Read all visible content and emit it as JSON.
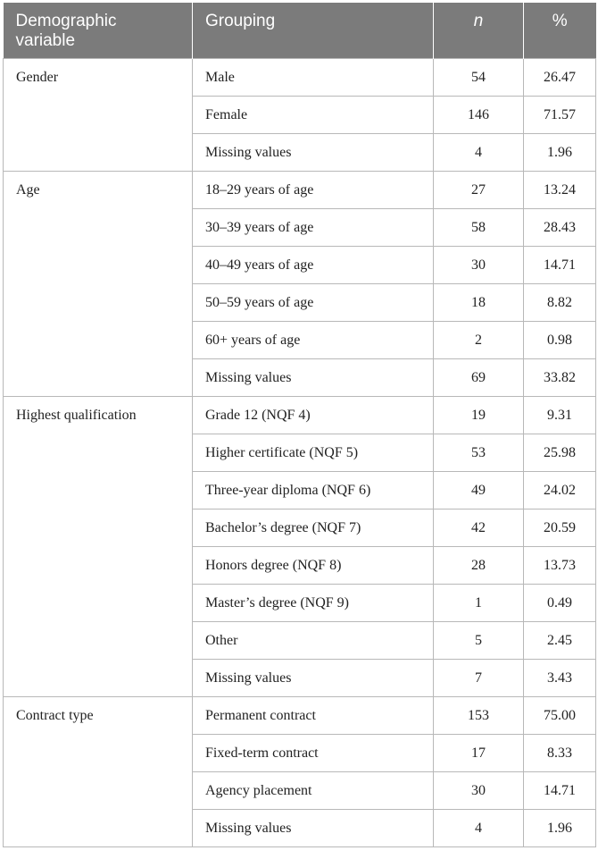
{
  "header": {
    "col1": "Demographic variable",
    "col2": "Grouping",
    "col3": "n",
    "col4": "%"
  },
  "groups": [
    {
      "variable": "Gender",
      "rows": [
        {
          "grouping": "Male",
          "n": "54",
          "pct": "26.47"
        },
        {
          "grouping": "Female",
          "n": "146",
          "pct": "71.57"
        },
        {
          "grouping": "Missing values",
          "n": "4",
          "pct": "1.96"
        }
      ]
    },
    {
      "variable": "Age",
      "rows": [
        {
          "grouping": "18–29 years of age",
          "n": "27",
          "pct": "13.24"
        },
        {
          "grouping": "30–39 years of age",
          "n": "58",
          "pct": "28.43"
        },
        {
          "grouping": "40–49 years of age",
          "n": "30",
          "pct": "14.71"
        },
        {
          "grouping": "50–59 years of age",
          "n": "18",
          "pct": "8.82"
        },
        {
          "grouping": "60+ years of age",
          "n": "2",
          "pct": "0.98"
        },
        {
          "grouping": "Missing values",
          "n": "69",
          "pct": "33.82"
        }
      ]
    },
    {
      "variable": "Highest qualification",
      "rows": [
        {
          "grouping": "Grade 12 (NQF 4)",
          "n": "19",
          "pct": "9.31"
        },
        {
          "grouping": "Higher certificate (NQF 5)",
          "n": "53",
          "pct": "25.98"
        },
        {
          "grouping": "Three-year diploma (NQF 6)",
          "n": "49",
          "pct": "24.02"
        },
        {
          "grouping": "Bachelor’s degree (NQF 7)",
          "n": "42",
          "pct": "20.59"
        },
        {
          "grouping": "Honors degree (NQF 8)",
          "n": "28",
          "pct": "13.73"
        },
        {
          "grouping": "Master’s degree (NQF 9)",
          "n": "1",
          "pct": "0.49"
        },
        {
          "grouping": "Other",
          "n": "5",
          "pct": "2.45"
        },
        {
          "grouping": "Missing values",
          "n": "7",
          "pct": "3.43"
        }
      ]
    },
    {
      "variable": "Contract type",
      "rows": [
        {
          "grouping": "Permanent contract",
          "n": "153",
          "pct": "75.00"
        },
        {
          "grouping": "Fixed-term contract",
          "n": "17",
          "pct": "8.33"
        },
        {
          "grouping": "Agency placement",
          "n": "30",
          "pct": "14.71"
        },
        {
          "grouping": "Missing values",
          "n": "4",
          "pct": "1.96"
        }
      ]
    }
  ]
}
